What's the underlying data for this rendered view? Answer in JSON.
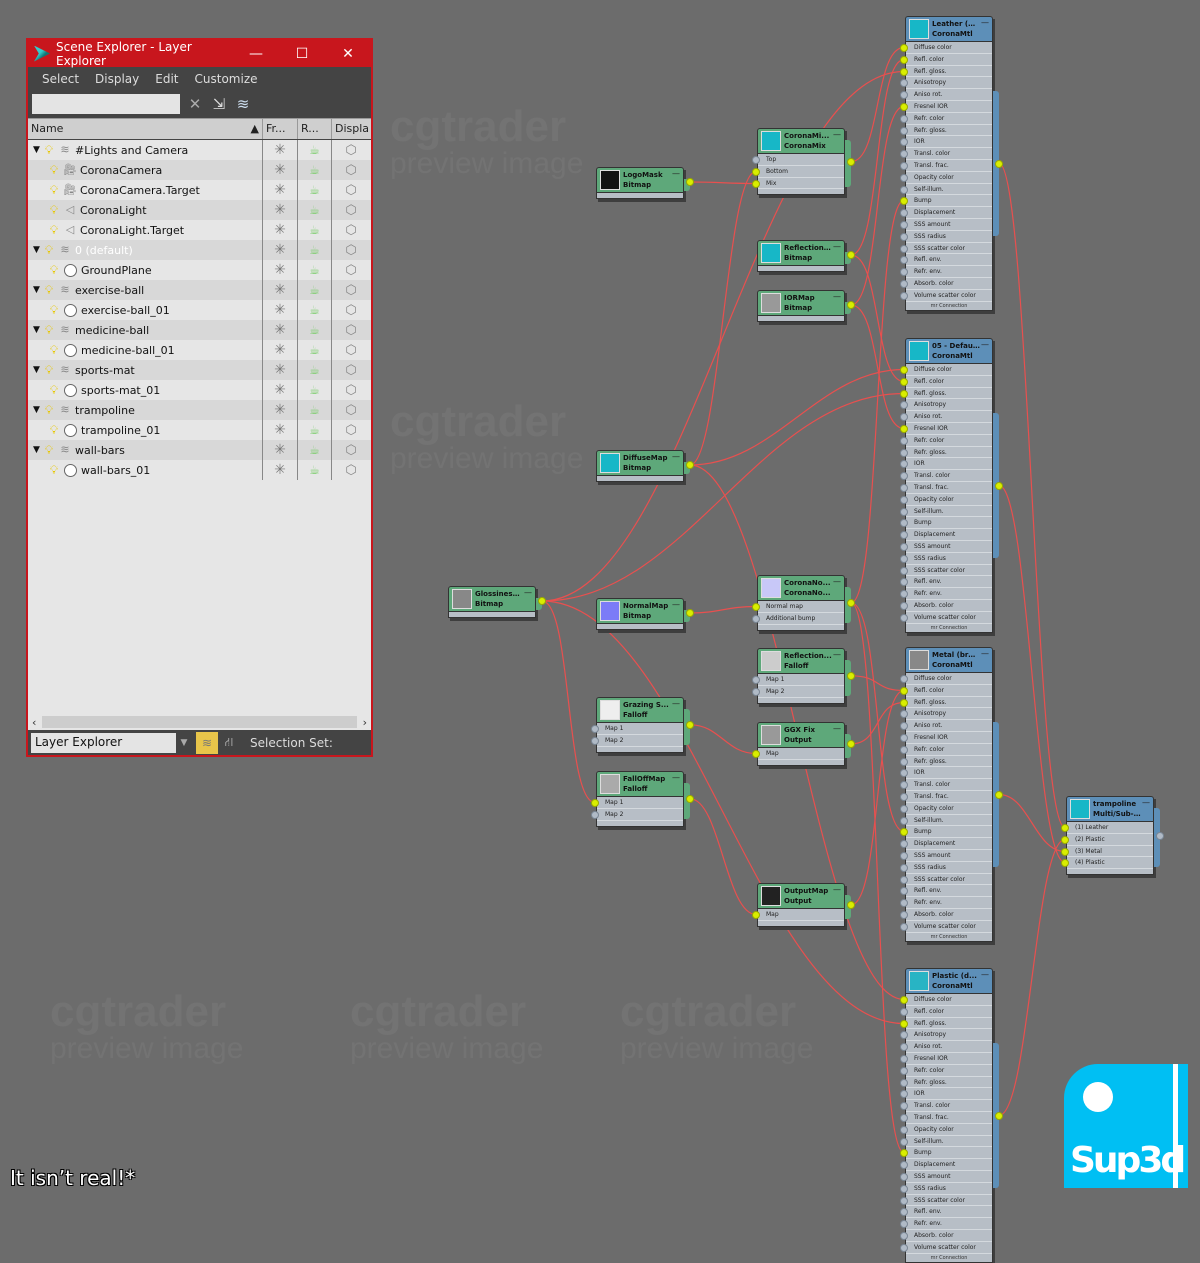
{
  "watermark": {
    "brand": "cgtrader",
    "sub": "preview image"
  },
  "explorer": {
    "title": "Scene Explorer - Layer Explorer",
    "window_buttons": [
      "—",
      "☐",
      "✕"
    ],
    "menu": [
      "Select",
      "Display",
      "Edit",
      "Customize"
    ],
    "search": {
      "value": "",
      "placeholder": ""
    },
    "columns": [
      "Name",
      "Fr...",
      "R...",
      "Displa..."
    ],
    "sort_indicator": "▲",
    "rows": [
      {
        "label": "#Lights and Camera",
        "kind": "layer",
        "expanded": true
      },
      {
        "label": "CoronaCamera",
        "kind": "camera"
      },
      {
        "label": "CoronaCamera.Target",
        "kind": "camera"
      },
      {
        "label": "CoronaLight",
        "kind": "light"
      },
      {
        "label": "CoronaLight.Target",
        "kind": "light"
      },
      {
        "label": "0 (default)",
        "kind": "layer",
        "expanded": true,
        "active": true
      },
      {
        "label": "GroundPlane",
        "kind": "object"
      },
      {
        "label": "exercise-ball",
        "kind": "layer",
        "expanded": true
      },
      {
        "label": "exercise-ball_01",
        "kind": "object"
      },
      {
        "label": "medicine-ball",
        "kind": "layer",
        "expanded": true
      },
      {
        "label": "medicine-ball_01",
        "kind": "object"
      },
      {
        "label": "sports-mat",
        "kind": "layer",
        "expanded": true
      },
      {
        "label": "sports-mat_01",
        "kind": "object"
      },
      {
        "label": "trampoline",
        "kind": "layer",
        "expanded": true
      },
      {
        "label": "trampoline_01",
        "kind": "object"
      },
      {
        "label": "wall-bars",
        "kind": "layer",
        "expanded": true
      },
      {
        "label": "wall-bars_01",
        "kind": "object"
      }
    ],
    "explorer_type": "Layer Explorer",
    "selection_set_label": "Selection Set:"
  },
  "material_slots": [
    "Diffuse color",
    "Refl. color",
    "Refl. gloss.",
    "Anisotropy",
    "Aniso rot.",
    "Fresnel IOR",
    "Refr. color",
    "Refr. gloss.",
    "IOR",
    "Transl. color",
    "Transl. frac.",
    "Opacity color",
    "Self-illum.",
    "Bump",
    "Displacement",
    "SSS amount",
    "SSS radius",
    "SSS scatter color",
    "Refl. env.",
    "Refr. env.",
    "Absorb. color",
    "Volume scatter color"
  ],
  "material_footer": "mr Connection",
  "nodes": [
    {
      "id": "leather",
      "kind": "mat",
      "title": "Leather (b...",
      "sub": "CoronaMtl",
      "thumb": "#17b7c7",
      "connected": [
        0,
        1,
        2,
        5,
        13
      ]
    },
    {
      "id": "default",
      "kind": "mat",
      "title": "05 - Defau...",
      "sub": "CoronaMtl",
      "thumb": "#17b7c7",
      "connected": [
        0,
        1,
        2,
        5
      ]
    },
    {
      "id": "metal",
      "kind": "mat",
      "title": "Metal (bru...",
      "sub": "CoronaMtl",
      "thumb": "#888888",
      "connected": [
        1,
        2,
        13
      ]
    },
    {
      "id": "plastic",
      "kind": "mat",
      "title": "Plastic (d...",
      "sub": "CoronaMtl",
      "thumb": "#28b4c4",
      "connected": [
        0,
        2,
        13
      ]
    },
    {
      "id": "logomask",
      "kind": "map",
      "title": "LogoMask",
      "sub": "Bitmap",
      "thumb": "#111111",
      "slots": []
    },
    {
      "id": "coronamix",
      "kind": "map",
      "title": "CoronaMi...",
      "sub": "CoronaMix",
      "thumb": "#17b7c7",
      "slots": [
        "Top",
        "Bottom",
        "Mix"
      ],
      "connected": [
        1,
        2
      ]
    },
    {
      "id": "reflcol",
      "kind": "map",
      "title": "ReflectionCol...",
      "sub": "Bitmap",
      "thumb": "#17b7c7",
      "slots": []
    },
    {
      "id": "iormap",
      "kind": "map",
      "title": "IORMap",
      "sub": "Bitmap",
      "thumb": "#999999",
      "slots": []
    },
    {
      "id": "diffusemap",
      "kind": "map",
      "title": "DiffuseMap",
      "sub": "Bitmap",
      "thumb": "#17b7c7",
      "slots": []
    },
    {
      "id": "glossmap",
      "kind": "map",
      "title": "GlossinessMap",
      "sub": "Bitmap",
      "thumb": "#888888",
      "slots": []
    },
    {
      "id": "normalmap",
      "kind": "map",
      "title": "NormalMap",
      "sub": "Bitmap",
      "thumb": "#7b7bf7",
      "slots": []
    },
    {
      "id": "coronanormal",
      "kind": "map",
      "title": "CoronaNo...",
      "sub": "CoronaNo...",
      "thumb": "#c8c8f8",
      "slots": [
        "Normal map",
        "Additional bump"
      ],
      "connected": [
        0
      ]
    },
    {
      "id": "reflfalloff",
      "kind": "map",
      "title": "Reflection...",
      "sub": "Falloff",
      "thumb": "#cccccc",
      "slots": [
        "Map 1",
        "Map 2"
      ],
      "connected": []
    },
    {
      "id": "grazing",
      "kind": "map",
      "title": "Grazing  S...",
      "sub": "Falloff",
      "thumb": "#eeeeee",
      "slots": [
        "Map 1",
        "Map 2"
      ],
      "connected": []
    },
    {
      "id": "ggx",
      "kind": "map",
      "title": "GGX Fix",
      "sub": "Output",
      "thumb": "#999999",
      "slots": [
        "Map"
      ],
      "connected": [
        0
      ]
    },
    {
      "id": "falloffmap",
      "kind": "map",
      "title": "FallOffMap",
      "sub": "Falloff",
      "thumb": "#aaaaaa",
      "slots": [
        "Map 1",
        "Map 2"
      ],
      "connected": [
        0
      ]
    },
    {
      "id": "outputmap",
      "kind": "map",
      "title": "OutputMap",
      "sub": "Output",
      "thumb": "#222222",
      "slots": [
        "Map"
      ],
      "connected": [
        0
      ]
    },
    {
      "id": "multisub",
      "kind": "mat",
      "title": "trampoline",
      "sub": "Multi/Sub-...",
      "thumb": "#17b7c7",
      "slots": [
        "(1) Leather",
        "(2) Plastic",
        "(3) Metal",
        "(4) Plastic"
      ],
      "connected": [
        0,
        1,
        2,
        3
      ]
    }
  ],
  "connections": [
    {
      "from": "logomask",
      "to": "coronamix",
      "slot": 2
    },
    {
      "from": "diffusemap",
      "to": "coronamix",
      "slot": 1
    },
    {
      "from": "coronamix",
      "to": "leather",
      "slot": 0
    },
    {
      "from": "reflcol",
      "to": "leather",
      "slot": 1
    },
    {
      "from": "reflcol",
      "to": "default",
      "slot": 1
    },
    {
      "from": "iormap",
      "to": "leather",
      "slot": 5
    },
    {
      "from": "iormap",
      "to": "default",
      "slot": 5
    },
    {
      "from": "glossmap",
      "to": "leather",
      "slot": 2
    },
    {
      "from": "glossmap",
      "to": "default",
      "slot": 2
    },
    {
      "from": "glossmap",
      "to": "plastic",
      "slot": 2
    },
    {
      "from": "glossmap",
      "to": "falloffmap",
      "slot": 0
    },
    {
      "from": "diffusemap",
      "to": "default",
      "slot": 0
    },
    {
      "from": "diffusemap",
      "to": "plastic",
      "slot": 0
    },
    {
      "from": "normalmap",
      "to": "coronanormal",
      "slot": 0
    },
    {
      "from": "coronanormal",
      "to": "leather",
      "slot": 13
    },
    {
      "from": "coronanormal",
      "to": "metal",
      "slot": 13
    },
    {
      "from": "coronanormal",
      "to": "plastic",
      "slot": 13
    },
    {
      "from": "reflfalloff",
      "to": "metal",
      "slot": 1
    },
    {
      "from": "ggx",
      "to": "metal",
      "slot": 2
    },
    {
      "from": "grazing",
      "to": "ggx",
      "slot": 0
    },
    {
      "from": "falloffmap",
      "to": "outputmap",
      "slot": 0
    },
    {
      "from": "outputmap",
      "to": "metal",
      "slot": 1
    },
    {
      "from": "leather",
      "to": "multisub",
      "slot": 0
    },
    {
      "from": "plastic",
      "to": "multisub",
      "slot": 1
    },
    {
      "from": "metal",
      "to": "multisub",
      "slot": 2
    },
    {
      "from": "default",
      "to": "multisub",
      "slot": 3
    }
  ],
  "colors": {
    "wire": "#e8504f",
    "socket_on": "#d9ee00",
    "map_header": "#5ea87a",
    "mat_header": "#5d8fb8",
    "explorer_border": "#c8161d",
    "logo": "#00bff3"
  },
  "logo": {
    "text": "Sup3d"
  },
  "caption": "It isn’t real!*"
}
